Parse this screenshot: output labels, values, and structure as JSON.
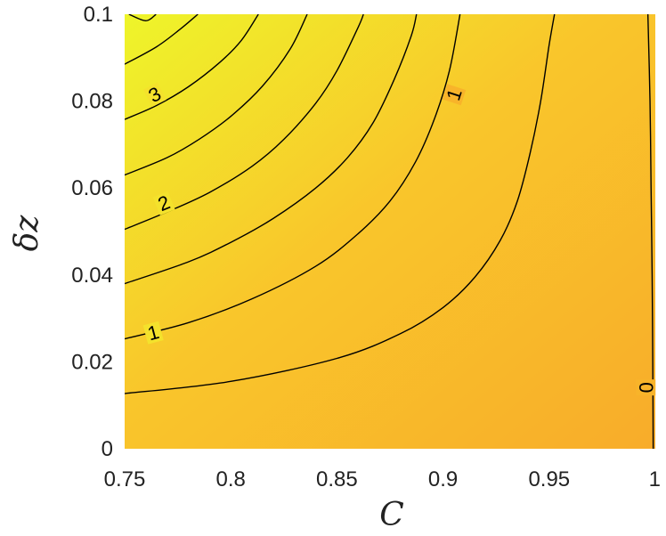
{
  "chart_data": {
    "type": "contour",
    "title": "",
    "xlabel": "C",
    "ylabel": "δz",
    "xlim": [
      0.75,
      1
    ],
    "ylim": [
      0,
      0.1
    ],
    "x_ticks": [
      0.75,
      0.8,
      0.85,
      0.9,
      0.95,
      1
    ],
    "x_tick_labels": [
      "0.75",
      "0.8",
      "0.85",
      "0.9",
      "0.95",
      "1"
    ],
    "y_ticks": [
      0,
      0.02,
      0.04,
      0.06,
      0.08,
      0.1
    ],
    "y_tick_labels": [
      "0",
      "0.02",
      "0.04",
      "0.06",
      "0.08",
      "0.1"
    ],
    "colormap": {
      "high": "#eef52a",
      "mid": "#f9c62b",
      "low": "#f8ac2a"
    },
    "grid": false,
    "contours": [
      {
        "level": 0,
        "points": [
          [
            0.9965,
            0.1
          ],
          [
            0.9975,
            0.08
          ],
          [
            0.998,
            0.06
          ],
          [
            0.9985,
            0.04
          ],
          [
            0.9988,
            0.02
          ],
          [
            0.999,
            0.0
          ]
        ]
      },
      {
        "level": 0.5,
        "points": [
          [
            0.75,
            0.0127
          ],
          [
            0.8,
            0.0155
          ],
          [
            0.85,
            0.0208
          ],
          [
            0.88,
            0.0265
          ],
          [
            0.9,
            0.0325
          ],
          [
            0.915,
            0.0395
          ],
          [
            0.927,
            0.048
          ],
          [
            0.935,
            0.057
          ],
          [
            0.941,
            0.068
          ],
          [
            0.946,
            0.08
          ],
          [
            0.95,
            0.093
          ],
          [
            0.9525,
            0.1
          ]
        ]
      },
      {
        "level": 1,
        "points": [
          [
            0.75,
            0.0253
          ],
          [
            0.78,
            0.029
          ],
          [
            0.81,
            0.0345
          ],
          [
            0.84,
            0.042
          ],
          [
            0.86,
            0.0495
          ],
          [
            0.875,
            0.057
          ],
          [
            0.887,
            0.066
          ],
          [
            0.896,
            0.076
          ],
          [
            0.903,
            0.087
          ],
          [
            0.908,
            0.1
          ]
        ]
      },
      {
        "level": 1.5,
        "points": [
          [
            0.75,
            0.038
          ],
          [
            0.78,
            0.043
          ],
          [
            0.8,
            0.0475
          ],
          [
            0.82,
            0.053
          ],
          [
            0.84,
            0.06
          ],
          [
            0.855,
            0.067
          ],
          [
            0.867,
            0.075
          ],
          [
            0.877,
            0.085
          ],
          [
            0.885,
            0.095
          ],
          [
            0.8875,
            0.1
          ]
        ]
      },
      {
        "level": 2,
        "points": [
          [
            0.75,
            0.0505
          ],
          [
            0.77,
            0.0545
          ],
          [
            0.79,
            0.059
          ],
          [
            0.81,
            0.065
          ],
          [
            0.825,
            0.0712
          ],
          [
            0.84,
            0.0795
          ],
          [
            0.85,
            0.087
          ],
          [
            0.86,
            0.097
          ],
          [
            0.8625,
            0.1
          ]
        ]
      },
      {
        "level": 2.5,
        "points": [
          [
            0.75,
            0.063
          ],
          [
            0.77,
            0.067
          ],
          [
            0.785,
            0.0712
          ],
          [
            0.8,
            0.0765
          ],
          [
            0.815,
            0.0835
          ],
          [
            0.828,
            0.092
          ],
          [
            0.836,
            0.1
          ]
        ]
      },
      {
        "level": 3,
        "points": [
          [
            0.75,
            0.0758
          ],
          [
            0.765,
            0.079
          ],
          [
            0.78,
            0.0833
          ],
          [
            0.795,
            0.089
          ],
          [
            0.805,
            0.094
          ],
          [
            0.813,
            0.1
          ]
        ]
      },
      {
        "level": 3.5,
        "points": [
          [
            0.75,
            0.0885
          ],
          [
            0.765,
            0.0925
          ],
          [
            0.776,
            0.0965
          ],
          [
            0.7845,
            0.1
          ]
        ]
      },
      {
        "level": 4,
        "points": [
          [
            0.752,
            0.1
          ],
          [
            0.76,
            0.0985
          ],
          [
            0.7648,
            0.1
          ]
        ]
      }
    ],
    "contour_labels": [
      {
        "text": "3",
        "x": 0.7642,
        "y": 0.0815,
        "angle": -27
      },
      {
        "text": "2",
        "x": 0.7685,
        "y": 0.0565,
        "angle": -22
      },
      {
        "text": "1",
        "x": 0.7635,
        "y": 0.0267,
        "angle": -15
      },
      {
        "text": "1",
        "x": 0.9052,
        "y": 0.0815,
        "angle": -72
      },
      {
        "text": "0",
        "x": 0.9955,
        "y": 0.0141,
        "angle": 90
      }
    ]
  }
}
